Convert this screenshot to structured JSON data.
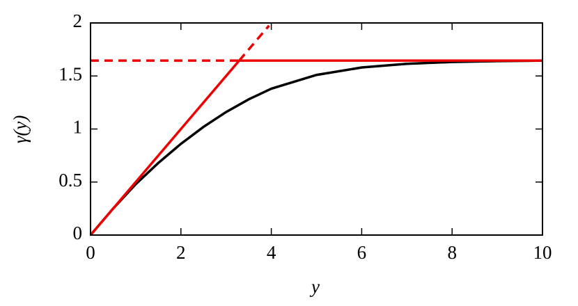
{
  "chart_data": {
    "type": "line",
    "x_label": "y",
    "y_label": "γ(y)",
    "xlim": [
      0,
      10
    ],
    "ylim": [
      0,
      2
    ],
    "xticks": [
      0,
      2,
      4,
      6,
      8,
      10
    ],
    "yticks": [
      0,
      0.5,
      1,
      1.5,
      2
    ],
    "series": [
      {
        "color": "#000000",
        "dashed": false,
        "x": [
          0,
          0.5,
          1,
          1.5,
          2,
          2.5,
          3,
          3.5,
          4,
          5,
          6,
          7,
          8,
          9,
          10
        ],
        "values": [
          0,
          0.25,
          0.48,
          0.68,
          0.86,
          1.02,
          1.16,
          1.28,
          1.38,
          1.51,
          1.58,
          1.615,
          1.632,
          1.64,
          1.645
        ]
      },
      {
        "color": "#ee0000",
        "dashed": false,
        "x": [
          0,
          3.29
        ],
        "values": [
          0,
          1.645
        ]
      },
      {
        "color": "#ee0000",
        "dashed": true,
        "x": [
          3.29,
          3.95
        ],
        "values": [
          1.645,
          1.975
        ]
      },
      {
        "color": "#ee0000",
        "dashed": true,
        "x": [
          0,
          3.29
        ],
        "values": [
          1.645,
          1.645
        ]
      },
      {
        "color": "#ee0000",
        "dashed": false,
        "x": [
          3.29,
          10
        ],
        "values": [
          1.645,
          1.645
        ]
      }
    ]
  }
}
